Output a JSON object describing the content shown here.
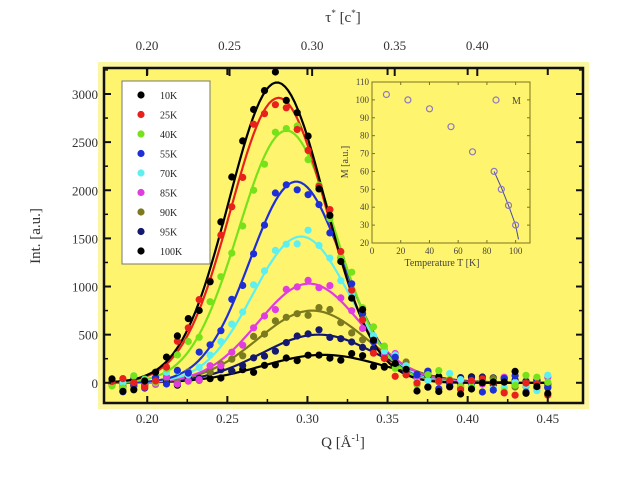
{
  "chart_data": {
    "type": "scatter",
    "title": "",
    "xlabel": "Q [Å⁻¹]",
    "xlabel_base": "Q [Å",
    "xlabel_sup": "-1",
    "xlabel_end": "]",
    "ylabel": "Int. [a.u.]",
    "top_xlabel_base": "τ",
    "top_xlabel_mid": " [c",
    "top_xlabel_end": "]",
    "top_xlabel_sup": "*",
    "xlim": [
      0.173,
      0.472
    ],
    "ylim": [
      -210,
      3270
    ],
    "top_xlim": [
      0.174,
      0.464
    ],
    "xticks": [
      "0.20",
      "0.25",
      "0.30",
      "0.35",
      "0.40",
      "0.45"
    ],
    "xtick_values": [
      0.2,
      0.25,
      0.3,
      0.35,
      0.4,
      0.45
    ],
    "yticks": [
      "0",
      "500",
      "1000",
      "1500",
      "2000",
      "2500",
      "3000"
    ],
    "ytick_values": [
      0,
      500,
      1000,
      1500,
      2000,
      2500,
      3000
    ],
    "top_xticks": [
      "0.20",
      "0.25",
      "0.30",
      "0.35",
      "0.40"
    ],
    "top_xtick_values": [
      0.2,
      0.25,
      0.3,
      0.35,
      0.4
    ],
    "background_color": "#fff46e",
    "legend_position": "top-left",
    "series": [
      {
        "name": "10K",
        "color": "#000000",
        "amplitude": 3120,
        "center": 0.281,
        "width": 0.03,
        "baseline": 0
      },
      {
        "name": "25K",
        "color": "#e8211c",
        "amplitude": 2960,
        "center": 0.282,
        "width": 0.03,
        "baseline": 0
      },
      {
        "name": "40K",
        "color": "#76e21a",
        "amplitude": 2620,
        "center": 0.287,
        "width": 0.03,
        "baseline": 0
      },
      {
        "name": "55K",
        "color": "#1f2fd8",
        "amplitude": 2090,
        "center": 0.293,
        "width": 0.029,
        "baseline": 0
      },
      {
        "name": "70K",
        "color": "#5ef0f0",
        "amplitude": 1520,
        "center": 0.296,
        "width": 0.03,
        "baseline": 0
      },
      {
        "name": "85K",
        "color": "#e03ce0",
        "amplitude": 1030,
        "center": 0.301,
        "width": 0.032,
        "baseline": 0
      },
      {
        "name": "90K",
        "color": "#7b7a1e",
        "amplitude": 750,
        "center": 0.303,
        "width": 0.034,
        "baseline": 0
      },
      {
        "name": "95K",
        "color": "#14186e",
        "amplitude": 500,
        "center": 0.307,
        "width": 0.036,
        "baseline": 0
      },
      {
        "name": "100K",
        "color": "#000000",
        "amplitude": 290,
        "center": 0.31,
        "width": 0.038,
        "baseline": 0
      }
    ],
    "inset": {
      "type": "scatter",
      "xlabel": "Temperature T [K]",
      "ylabel": "M [a.u.]",
      "legend_label": "M",
      "xlim": [
        0,
        110
      ],
      "ylim": [
        20,
        110
      ],
      "xticks": [
        "0",
        "20",
        "40",
        "60",
        "80",
        "100"
      ],
      "xtick_values": [
        0,
        20,
        40,
        60,
        80,
        100
      ],
      "yticks": [
        "20",
        "30",
        "40",
        "50",
        "60",
        "70",
        "80",
        "90",
        "100",
        "110"
      ],
      "ytick_values": [
        20,
        30,
        40,
        50,
        60,
        70,
        80,
        90,
        100,
        110
      ],
      "marker_color": "#8a78c8",
      "points": [
        {
          "T": 10,
          "M": 103
        },
        {
          "T": 25,
          "M": 100
        },
        {
          "T": 40,
          "M": 95
        },
        {
          "T": 55,
          "M": 85
        },
        {
          "T": 70,
          "M": 71
        },
        {
          "T": 85,
          "M": 60
        },
        {
          "T": 90,
          "M": 50
        },
        {
          "T": 95,
          "M": 41
        },
        {
          "T": 100,
          "M": 30
        }
      ],
      "fit_curve": [
        {
          "T": 85,
          "M": 60
        },
        {
          "T": 90,
          "M": 51
        },
        {
          "T": 95,
          "M": 41
        },
        {
          "T": 100,
          "M": 30
        },
        {
          "T": 102,
          "M": 22
        }
      ]
    }
  }
}
